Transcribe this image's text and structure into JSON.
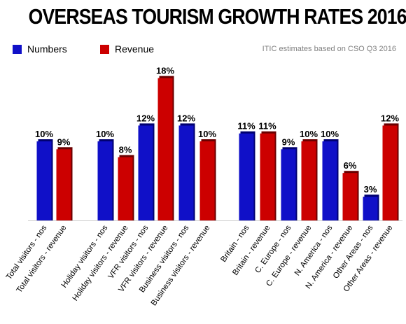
{
  "chart_data": {
    "type": "bar",
    "title": "OVERSEAS TOURISM GROWTH RATES 2016",
    "source_note": "ITIC estimates based on CSO Q3 2016",
    "legend": [
      {
        "name": "Numbers",
        "color": "#1010c8"
      },
      {
        "name": "Revenue",
        "color": "#cc0000"
      }
    ],
    "legend_placement": "top-left",
    "grid": false,
    "ylim": [
      0,
      20
    ],
    "value_suffix": "%",
    "bars": [
      {
        "label": "Total visitors - nos",
        "value": 10,
        "series": "Numbers"
      },
      {
        "label": "Total visitors - revenue",
        "value": 9,
        "series": "Revenue"
      },
      {
        "label": "Holiday visitors - nos",
        "value": 10,
        "series": "Numbers"
      },
      {
        "label": "Holiday visitors - revenue",
        "value": 8,
        "series": "Revenue"
      },
      {
        "label": "VFR visitors - nos",
        "value": 12,
        "series": "Numbers"
      },
      {
        "label": "VFR visitors - revenue",
        "value": 18,
        "series": "Revenue"
      },
      {
        "label": "Business visitors - nos",
        "value": 12,
        "series": "Numbers"
      },
      {
        "label": "Business visitors - revenue",
        "value": 10,
        "series": "Revenue"
      },
      {
        "label": "Britain - nos",
        "value": 11,
        "series": "Numbers"
      },
      {
        "label": "Britain - revenue",
        "value": 11,
        "series": "Revenue"
      },
      {
        "label": "C. Europe - nos",
        "value": 9,
        "series": "Numbers"
      },
      {
        "label": "C. Europe - revenue",
        "value": 10,
        "series": "Revenue"
      },
      {
        "label": "N. America - nos",
        "value": 10,
        "series": "Numbers"
      },
      {
        "label": "N. America - revenue",
        "value": 6,
        "series": "Revenue"
      },
      {
        "label": "Other Areas - nos",
        "value": 3,
        "series": "Numbers"
      },
      {
        "label": "Other Areas - revenue",
        "value": 12,
        "series": "Revenue"
      }
    ]
  }
}
